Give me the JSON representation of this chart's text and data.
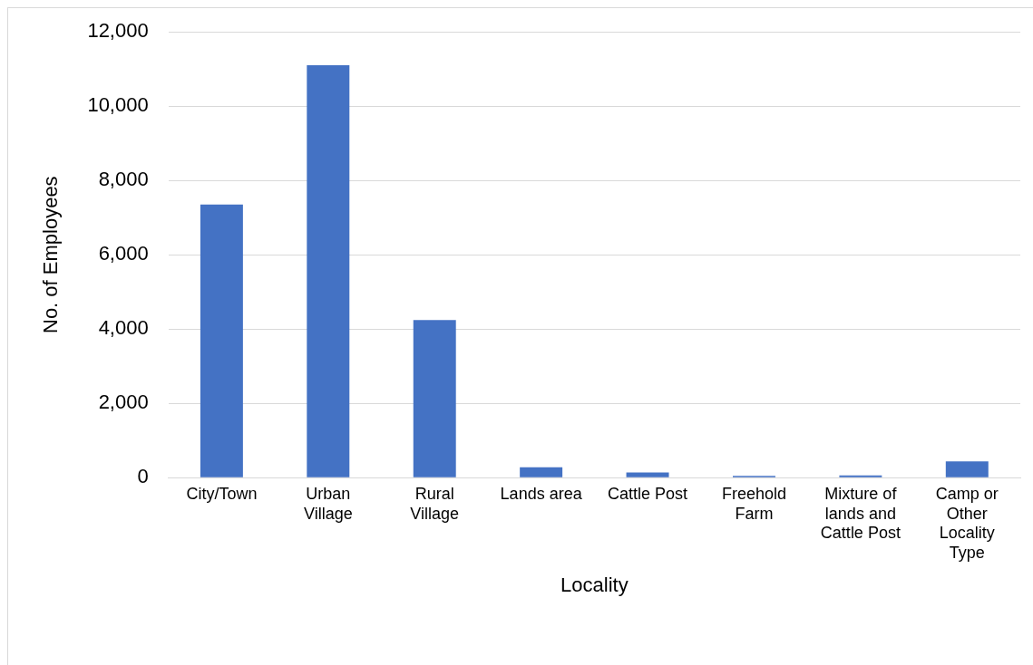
{
  "chart_data": {
    "type": "bar",
    "xlabel": "Locality",
    "ylabel": "No. of Employees",
    "categories": [
      "City/Town",
      "Urban Village",
      "Rural Village",
      "Lands area",
      "Cattle Post",
      "Freehold Farm",
      "Mixture of lands and Cattle Post",
      "Camp or Other Locality Type"
    ],
    "values": [
      7350,
      11100,
      4240,
      280,
      140,
      50,
      60,
      440
    ],
    "color": "#4472c4",
    "ylim": [
      0,
      12000
    ],
    "yticks": [
      0,
      {
        "value": 2000,
        "label": "2,000"
      },
      {
        "value": 4000,
        "label": "4,000"
      },
      {
        "value": 6000,
        "label": "6,000"
      },
      {
        "value": 8000,
        "label": "8,000"
      },
      {
        "value": 10000,
        "label": "10,000"
      },
      {
        "value": 12000,
        "label": "12,000"
      }
    ],
    "grid": "y",
    "legend": false
  }
}
